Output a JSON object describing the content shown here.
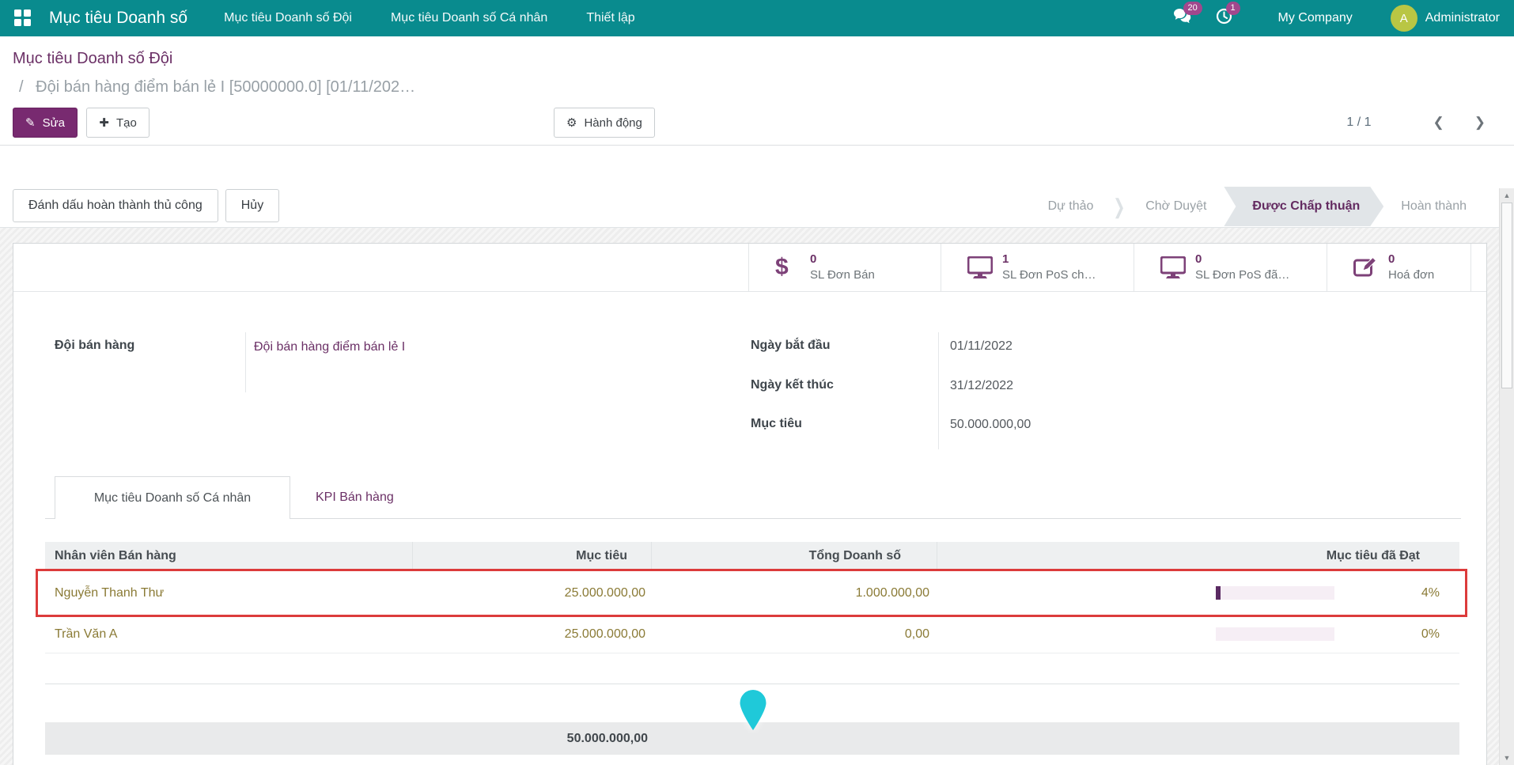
{
  "colors": {
    "navbar_bg": "#098b8e",
    "accent_purple": "#6b3066",
    "button_purple": "#782a70",
    "badge": "#a1478d",
    "avatar_bg": "#b9c644",
    "highlight_red": "#dc3b3b",
    "row_text_olive": "#8a7a35",
    "progress_fill": "#5a2a62",
    "progress_track": "#f6eef5",
    "pin_teal": "#1fc9d9",
    "stage_active_bg": "#e1e5e8"
  },
  "icons": {
    "scroll_up": "▲",
    "scroll_down": "▼",
    "pager_prev": "❮",
    "pager_next": "❯",
    "edit": "✎",
    "create": "✚",
    "gear": "⚙",
    "dollar": "$"
  },
  "navbar": {
    "brand": "Mục tiêu Doanh số",
    "menu": [
      "Mục tiêu Doanh số Đội",
      "Mục tiêu Doanh số Cá nhân",
      "Thiết lập"
    ],
    "messages_badge": "20",
    "activities_badge": "1",
    "company": "My Company",
    "user": "Administrator",
    "avatar_initial": "A"
  },
  "breadcrumb": {
    "parent": "Mục tiêu Doanh số Đội",
    "separator": "/",
    "current": "Đội bán hàng điểm bán lẻ I [50000000.0] [01/11/202…"
  },
  "actions": {
    "edit": "Sửa",
    "create": "Tạo",
    "action_menu": "Hành động",
    "pager": "1 / 1"
  },
  "statusbar": {
    "mark_done": "Đánh dấu hoàn thành thủ công",
    "cancel": "Hủy",
    "stages": [
      {
        "label": "Dự thảo",
        "active": false
      },
      {
        "label": "Chờ Duyệt",
        "active": false
      },
      {
        "label": "Được Chấp thuận",
        "active": true
      },
      {
        "label": "Hoàn thành",
        "active": false
      }
    ]
  },
  "stat_buttons": [
    {
      "icon": "dollar-icon",
      "value": "0",
      "label": "SL Đơn Bán"
    },
    {
      "icon": "monitor-icon",
      "value": "1",
      "label": "SL Đơn PoS ch…"
    },
    {
      "icon": "monitor-icon",
      "value": "0",
      "label": "SL Đơn PoS đã…"
    },
    {
      "icon": "invoice-edit-icon",
      "value": "0",
      "label": "Hoá đơn"
    }
  ],
  "form": {
    "team_label": "Đội bán hàng",
    "team_value": "Đội bán hàng điểm bán lẻ I",
    "start_label": "Ngày bắt đầu",
    "start_value": "01/11/2022",
    "end_label": "Ngày kết thúc",
    "end_value": "31/12/2022",
    "target_label": "Mục tiêu",
    "target_value": "50.000.000,00"
  },
  "tabs": [
    {
      "label": "Mục tiêu Doanh số Cá nhân",
      "active": true
    },
    {
      "label": "KPI Bán hàng",
      "active": false
    }
  ],
  "table": {
    "columns": [
      "Nhân viên Bán hàng",
      "Mục tiêu",
      "Tổng Doanh số",
      "Mục tiêu đã Đạt"
    ],
    "rows": [
      {
        "name": "Nguyễn Thanh Thư",
        "target": "25.000.000,00",
        "total": "1.000.000,00",
        "percent": "4%",
        "progress_percent": 4,
        "highlighted": true
      },
      {
        "name": "Trần Văn A",
        "target": "25.000.000,00",
        "total": "0,00",
        "percent": "0%",
        "progress_percent": 0,
        "highlighted": false
      }
    ],
    "footer_total": "50.000.000,00"
  }
}
